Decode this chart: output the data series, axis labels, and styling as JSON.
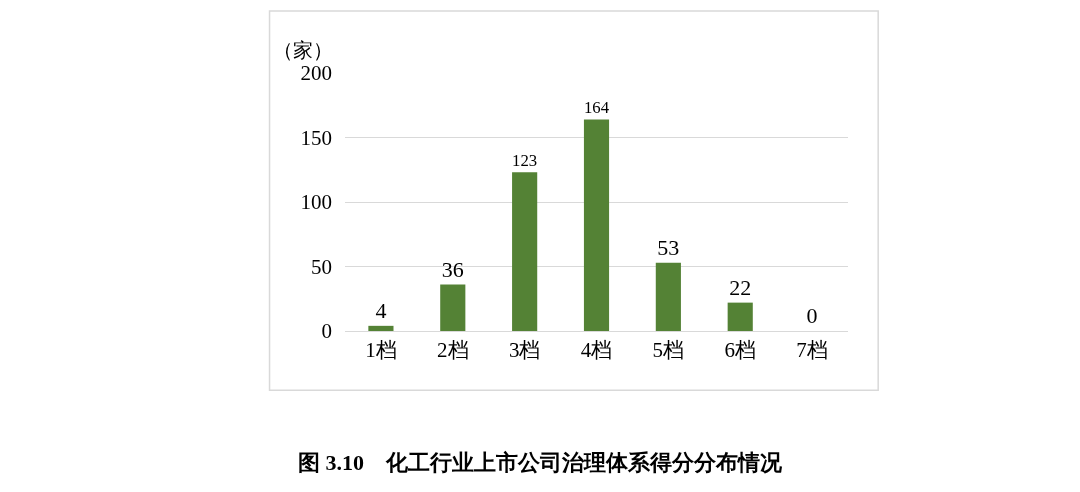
{
  "chart_data": {
    "type": "bar",
    "title": "图 3.10　化工行业上市公司治理体系得分分布情况",
    "ylabel": "（家）",
    "categories": [
      "1档",
      "2档",
      "3档",
      "4档",
      "5档",
      "6档",
      "7档"
    ],
    "values": [
      4,
      36,
      123,
      164,
      53,
      22,
      0
    ],
    "color": "#548235",
    "ylim": [
      0,
      200
    ],
    "yticks": [
      0,
      50,
      100,
      150,
      200
    ],
    "grid": "y",
    "data_labels": true,
    "legend": false
  }
}
